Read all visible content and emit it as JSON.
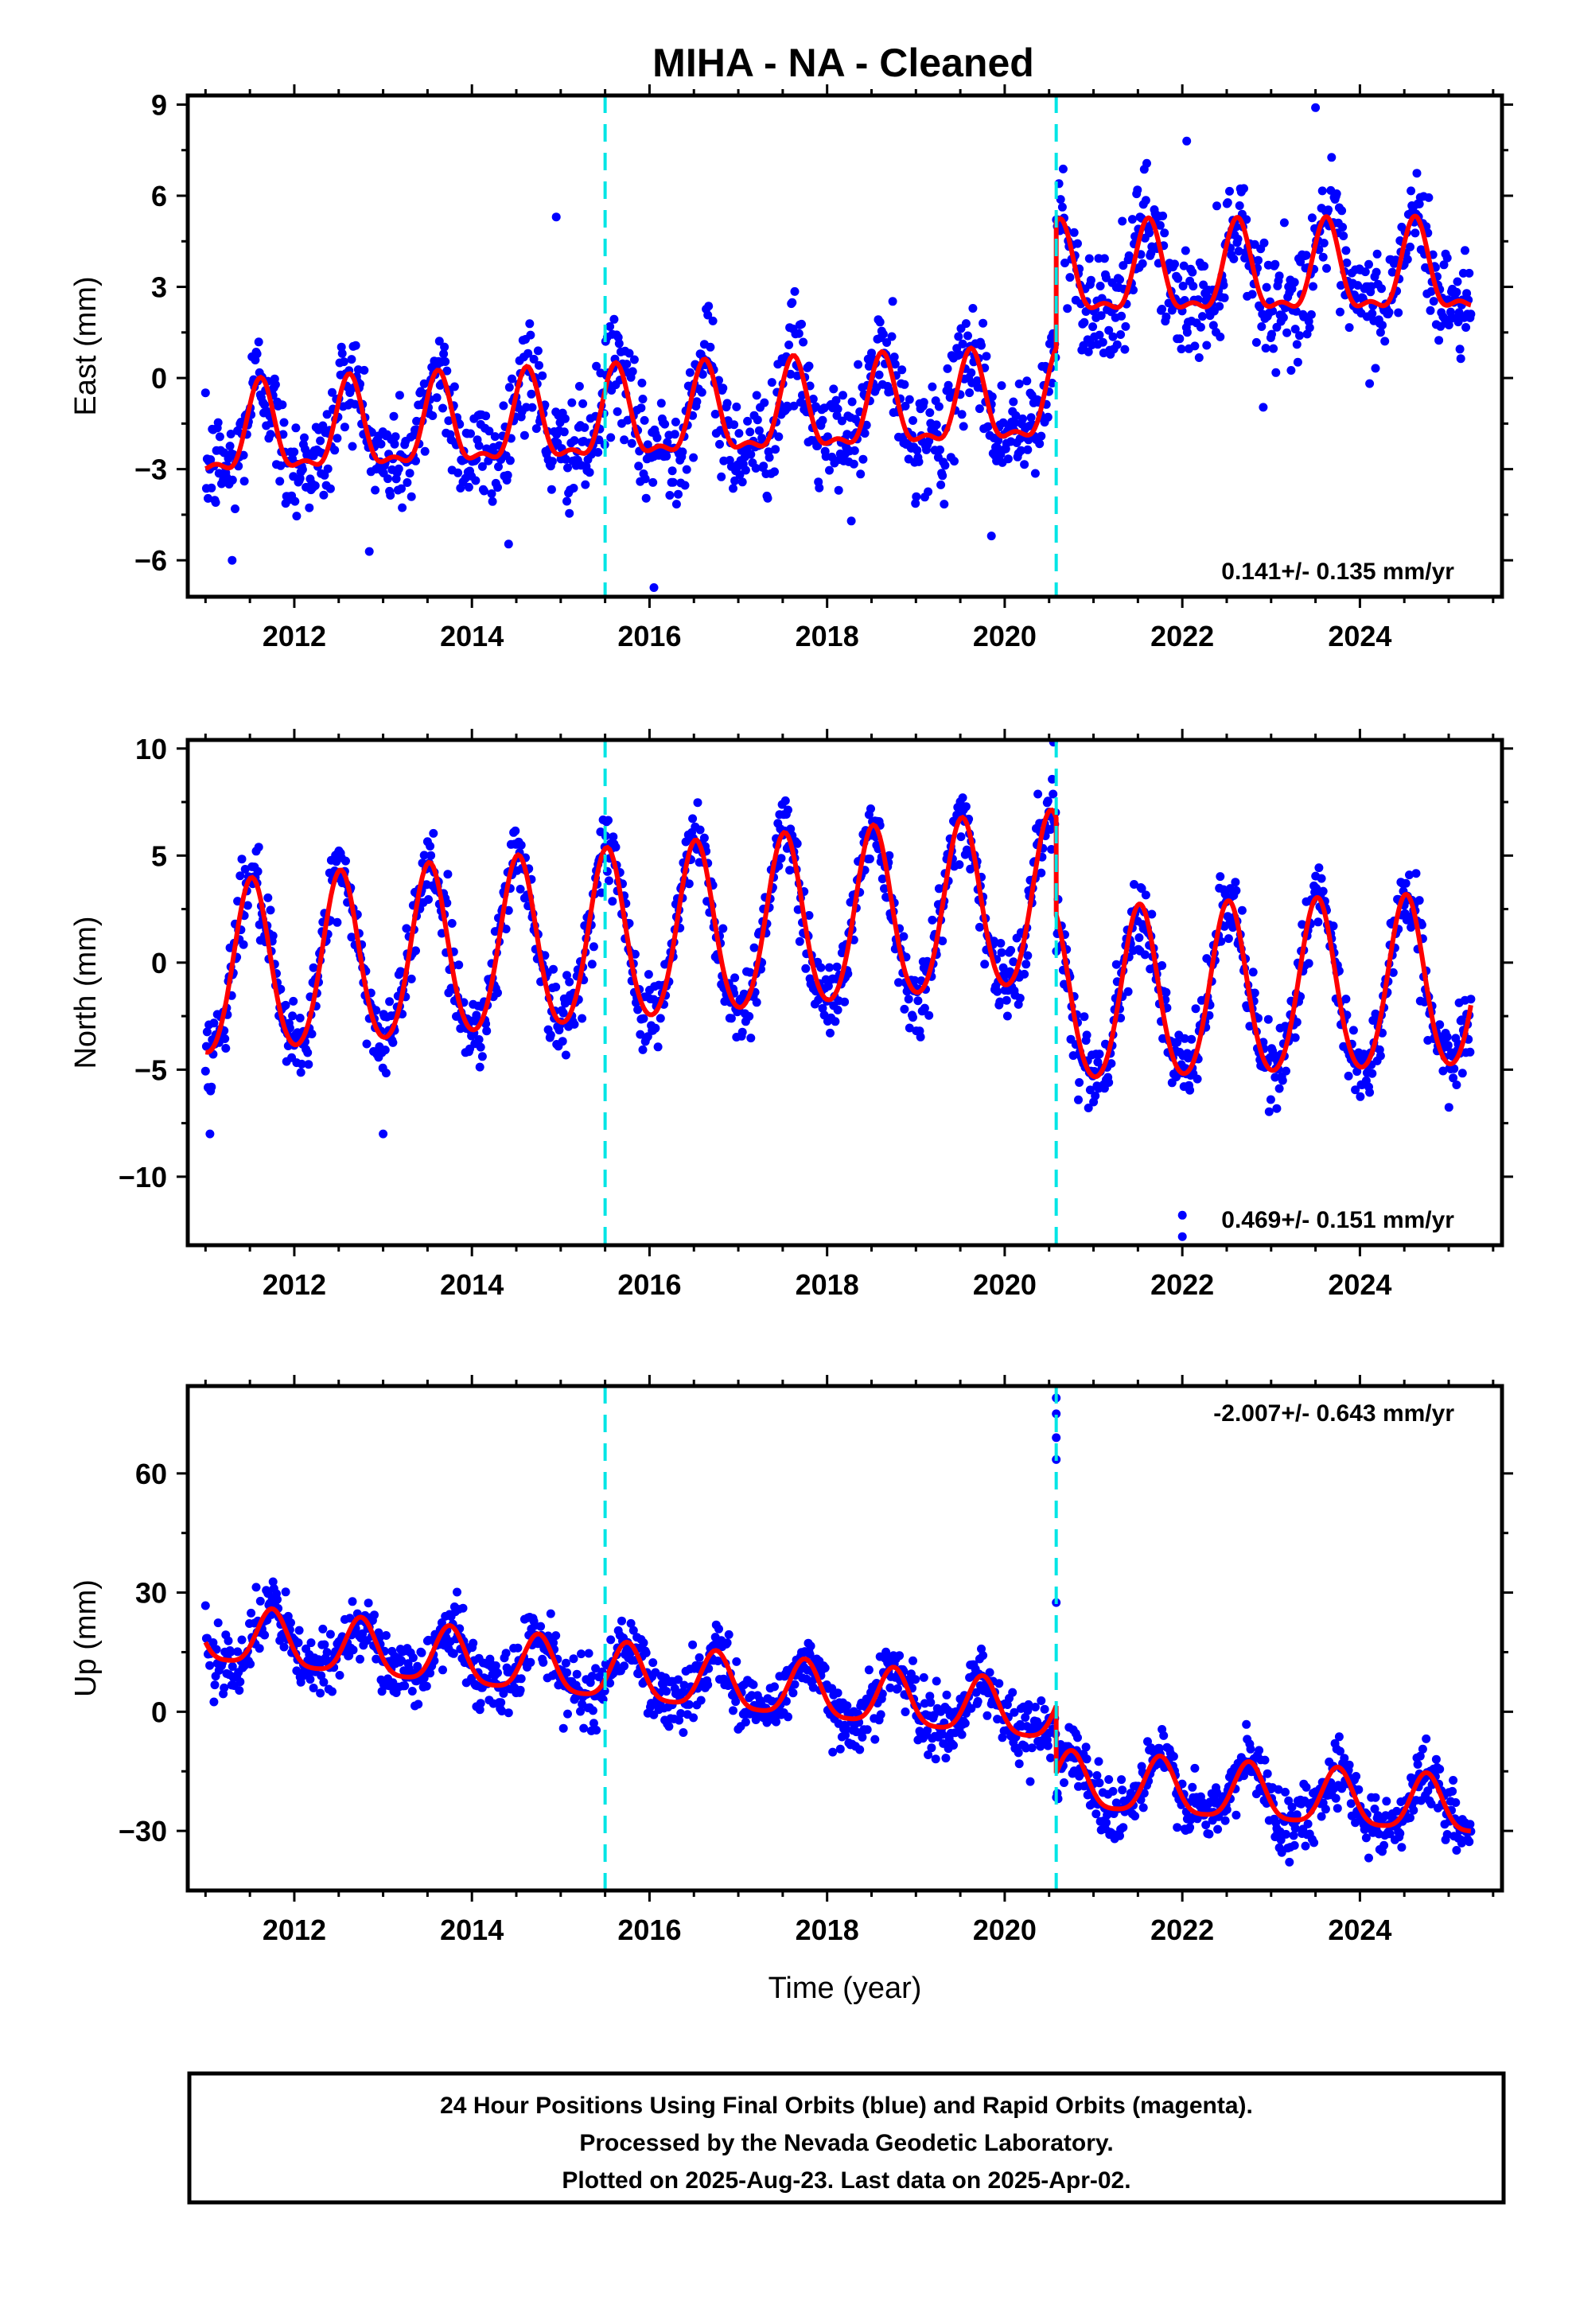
{
  "title": "MIHA  - NA - Cleaned",
  "colors": {
    "points": "#0000ff",
    "model": "#ff0000",
    "steps": "#00e5e5",
    "frame": "#000000"
  },
  "chart_data": [
    {
      "type": "scatter",
      "panel": "east",
      "ylabel": "East (mm)",
      "xlabel": "",
      "xlim": [
        2010.8,
        2025.6
      ],
      "ylim": [
        -7.2,
        9.3
      ],
      "yticks": [
        -6,
        -3,
        0,
        3,
        6,
        9
      ],
      "xticks": [
        2012,
        2014,
        2016,
        2018,
        2020,
        2022,
        2024
      ],
      "rate_label": "0.141+/- 0.135 mm/yr",
      "rate_position": "bottom-right",
      "step_epochs": [
        2015.5,
        2020.58
      ],
      "data_range": [
        2011.0,
        2025.25
      ],
      "model": {
        "trend_pre": {
          "start": -2.0,
          "rate": 0.12
        },
        "trend_post": {
          "start": 3.3,
          "rate": 0.02
        },
        "annual_amp": 1.4,
        "annual_phase_peak": 0.62,
        "semiannual_amp": 0.55
      },
      "scatter_sigma": 0.9,
      "outliers": [
        [
          2014.95,
          5.3
        ],
        [
          2016.05,
          -6.9
        ],
        [
          2019.85,
          -5.2
        ],
        [
          2022.05,
          7.8
        ],
        [
          2023.5,
          8.9
        ],
        [
          2011.3,
          -6.0
        ]
      ]
    },
    {
      "type": "scatter",
      "panel": "north",
      "ylabel": "North (mm)",
      "xlabel": "",
      "xlim": [
        2010.8,
        2025.6
      ],
      "ylim": [
        -13.2,
        10.4
      ],
      "yticks": [
        -10,
        -5,
        0,
        5,
        10
      ],
      "xticks": [
        2012,
        2014,
        2016,
        2018,
        2020,
        2022,
        2024
      ],
      "rate_label": "0.469+/- 0.151 mm/yr",
      "rate_position": "bottom-right",
      "step_epochs": [
        2015.5,
        2020.58
      ],
      "data_range": [
        2011.0,
        2025.25
      ],
      "model": {
        "trend_pre": {
          "start": -0.6,
          "rate": 0.35
        },
        "trend_post": {
          "start": -1.8,
          "rate": 0.15
        },
        "annual_amp": 4.0,
        "annual_phase_peak": 0.52,
        "semiannual_amp": 0.4
      },
      "scatter_sigma": 0.9,
      "outliers": [
        [
          2020.55,
          10.3
        ],
        [
          2022.0,
          -11.8
        ],
        [
          2022.0,
          -12.8
        ],
        [
          2011.05,
          -8.0
        ],
        [
          2013.0,
          -8.0
        ]
      ]
    },
    {
      "type": "scatter",
      "panel": "up",
      "ylabel": "Up (mm)",
      "xlabel": "Time (year)",
      "xlim": [
        2010.8,
        2025.6
      ],
      "ylim": [
        -45,
        82
      ],
      "yticks": [
        -30,
        0,
        30,
        60
      ],
      "xticks": [
        2012,
        2014,
        2016,
        2018,
        2020,
        2022,
        2024
      ],
      "rate_label": "-2.007+/- 0.643 mm/yr",
      "rate_position": "top-right",
      "step_epochs": [
        2015.5,
        2020.58
      ],
      "data_range": [
        2011.0,
        2025.25
      ],
      "model": {
        "trend_pre": {
          "start": 19.0,
          "rate": -2.1
        },
        "trend_post": {
          "start": -18.0,
          "rate": -1.4
        },
        "annual_amp": 7.0,
        "annual_phase_peak": 0.75,
        "semiannual_amp": 1.5
      },
      "scatter_sigma": 4.0,
      "outliers": [
        [
          2020.58,
          27.5
        ],
        [
          2020.58,
          63.5
        ],
        [
          2020.58,
          69
        ],
        [
          2020.58,
          75
        ],
        [
          2020.58,
          79
        ]
      ]
    }
  ],
  "footer": {
    "line1": "24 Hour Positions Using Final Orbits (blue) and Rapid Orbits (magenta).",
    "line2": "Processed by the Nevada Geodetic Laboratory.",
    "line3": "Plotted on 2025-Aug-23. Last data on 2025-Apr-02."
  }
}
